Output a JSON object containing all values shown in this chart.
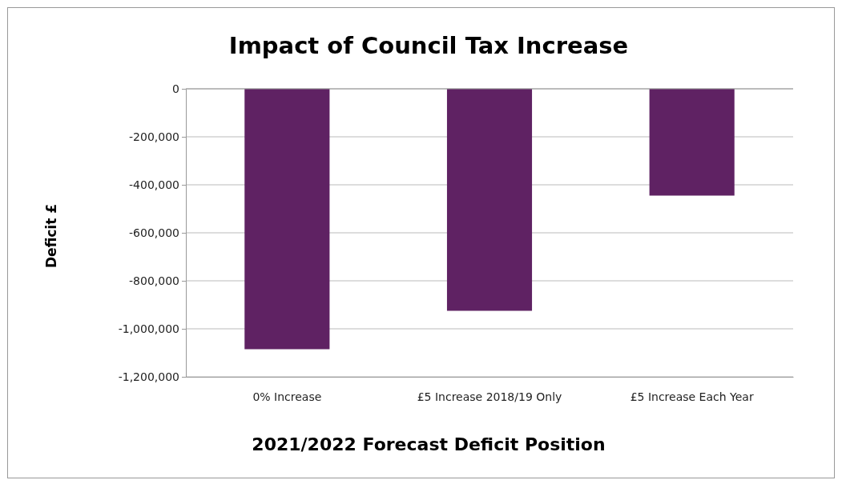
{
  "chart_data": {
    "type": "bar",
    "title": "Impact of Council Tax Increase",
    "xlabel": "2021/2022 Forecast Deficit Position",
    "ylabel": "Deficit £",
    "categories": [
      "0% Increase",
      "£5 Increase 2018/19 Only",
      "£5 Increase Each Year"
    ],
    "values": [
      -1085000,
      -925000,
      -445000
    ],
    "color": "#5f2263",
    "ylim": [
      -1200000,
      0
    ],
    "yticks": [
      {
        "value": -1200000,
        "label": "-1,200,000"
      },
      {
        "value": -1000000,
        "label": "-1,000,000"
      },
      {
        "value": -800000,
        "label": "-800,000"
      },
      {
        "value": -600000,
        "label": "-600,000"
      },
      {
        "value": -400000,
        "label": "-400,000"
      },
      {
        "value": -200000,
        "label": "-200,000"
      },
      0
    ],
    "grid": "y"
  }
}
